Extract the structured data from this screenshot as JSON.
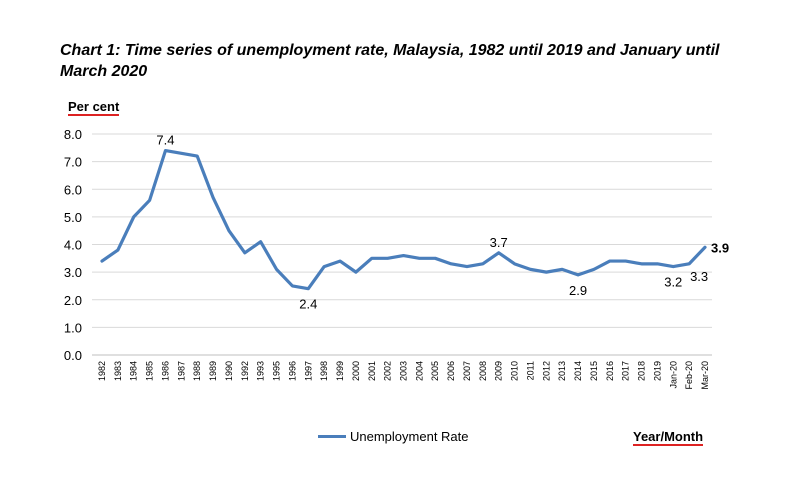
{
  "chart_data": {
    "type": "line",
    "title": "Chart 1: Time series of unemployment rate, Malaysia, 1982 until 2019 and January until March 2020",
    "ylabel": "Per cent",
    "xlabel": "Year/Month",
    "ylim": [
      0,
      8
    ],
    "yticks": [
      "0.0",
      "1.0",
      "2.0",
      "3.0",
      "4.0",
      "5.0",
      "6.0",
      "7.0",
      "8.0"
    ],
    "grid": true,
    "legend_position": "bottom",
    "categories": [
      "1982",
      "1983",
      "1984",
      "1985",
      "1986",
      "1987",
      "1988",
      "1989",
      "1990",
      "1992",
      "1993",
      "1995",
      "1996",
      "1997",
      "1998",
      "1999",
      "2000",
      "2001",
      "2002",
      "2003",
      "2004",
      "2005",
      "2006",
      "2007",
      "2008",
      "2009",
      "2010",
      "2011",
      "2012",
      "2013",
      "2014",
      "2015",
      "2016",
      "2017",
      "2018",
      "2019",
      "Jan-20",
      "Feb-20",
      "Mar-20"
    ],
    "series": [
      {
        "name": "Unemployment Rate",
        "color": "#4a7ebb",
        "values": [
          3.4,
          3.8,
          5.0,
          5.6,
          7.4,
          7.3,
          7.2,
          5.7,
          4.5,
          3.7,
          4.1,
          3.1,
          2.5,
          2.4,
          3.2,
          3.4,
          3.0,
          3.5,
          3.5,
          3.6,
          3.5,
          3.5,
          3.3,
          3.2,
          3.3,
          3.7,
          3.3,
          3.1,
          3.0,
          3.1,
          2.9,
          3.1,
          3.4,
          3.4,
          3.3,
          3.3,
          3.2,
          3.3,
          3.9
        ]
      }
    ],
    "data_labels": [
      {
        "category": "1986",
        "text": "7.4",
        "pos": "above"
      },
      {
        "category": "1997",
        "text": "2.4",
        "pos": "below"
      },
      {
        "category": "2009",
        "text": "3.7",
        "pos": "above"
      },
      {
        "category": "2014",
        "text": "2.9",
        "pos": "below"
      },
      {
        "category": "Jan-20",
        "text": "3.2",
        "pos": "below"
      },
      {
        "category": "Feb-20",
        "text": "3.3",
        "pos": "belowright"
      },
      {
        "category": "Mar-20",
        "text": "3.9",
        "pos": "right",
        "bold": true
      }
    ]
  }
}
